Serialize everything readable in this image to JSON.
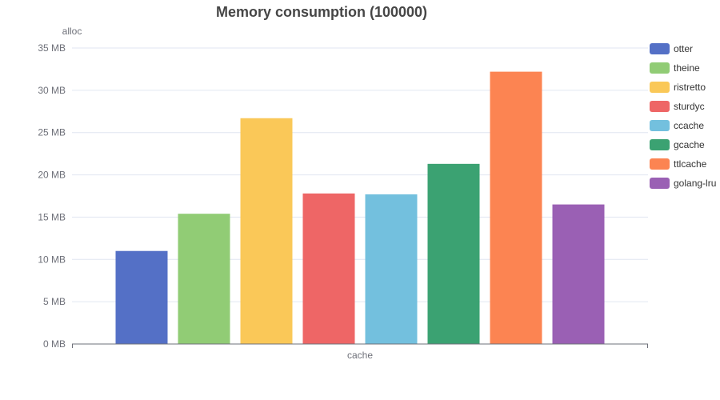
{
  "chart_data": {
    "type": "bar",
    "title": "Memory consumption (100000)",
    "ylabel": "alloc",
    "xlabel": "cache",
    "y_unit": "MB",
    "ylim": [
      0,
      35
    ],
    "yticks": [
      0,
      5,
      10,
      15,
      20,
      25,
      30,
      35
    ],
    "ytick_labels": [
      "0 MB",
      "5 MB",
      "10 MB",
      "15 MB",
      "20 MB",
      "25 MB",
      "30 MB",
      "35 MB"
    ],
    "grid": true,
    "legend_position": "right",
    "series": [
      {
        "name": "otter",
        "value": 11.0,
        "color": "#5470c6"
      },
      {
        "name": "theine",
        "value": 15.4,
        "color": "#91cc75"
      },
      {
        "name": "ristretto",
        "value": 26.7,
        "color": "#fac858"
      },
      {
        "name": "sturdyc",
        "value": 17.8,
        "color": "#ee6666"
      },
      {
        "name": "ccache",
        "value": 17.7,
        "color": "#73c0de"
      },
      {
        "name": "gcache",
        "value": 21.3,
        "color": "#3ba272"
      },
      {
        "name": "ttlcache",
        "value": 32.2,
        "color": "#fc8452"
      },
      {
        "name": "golang-lru",
        "value": 16.5,
        "color": "#9a60b4"
      }
    ]
  }
}
